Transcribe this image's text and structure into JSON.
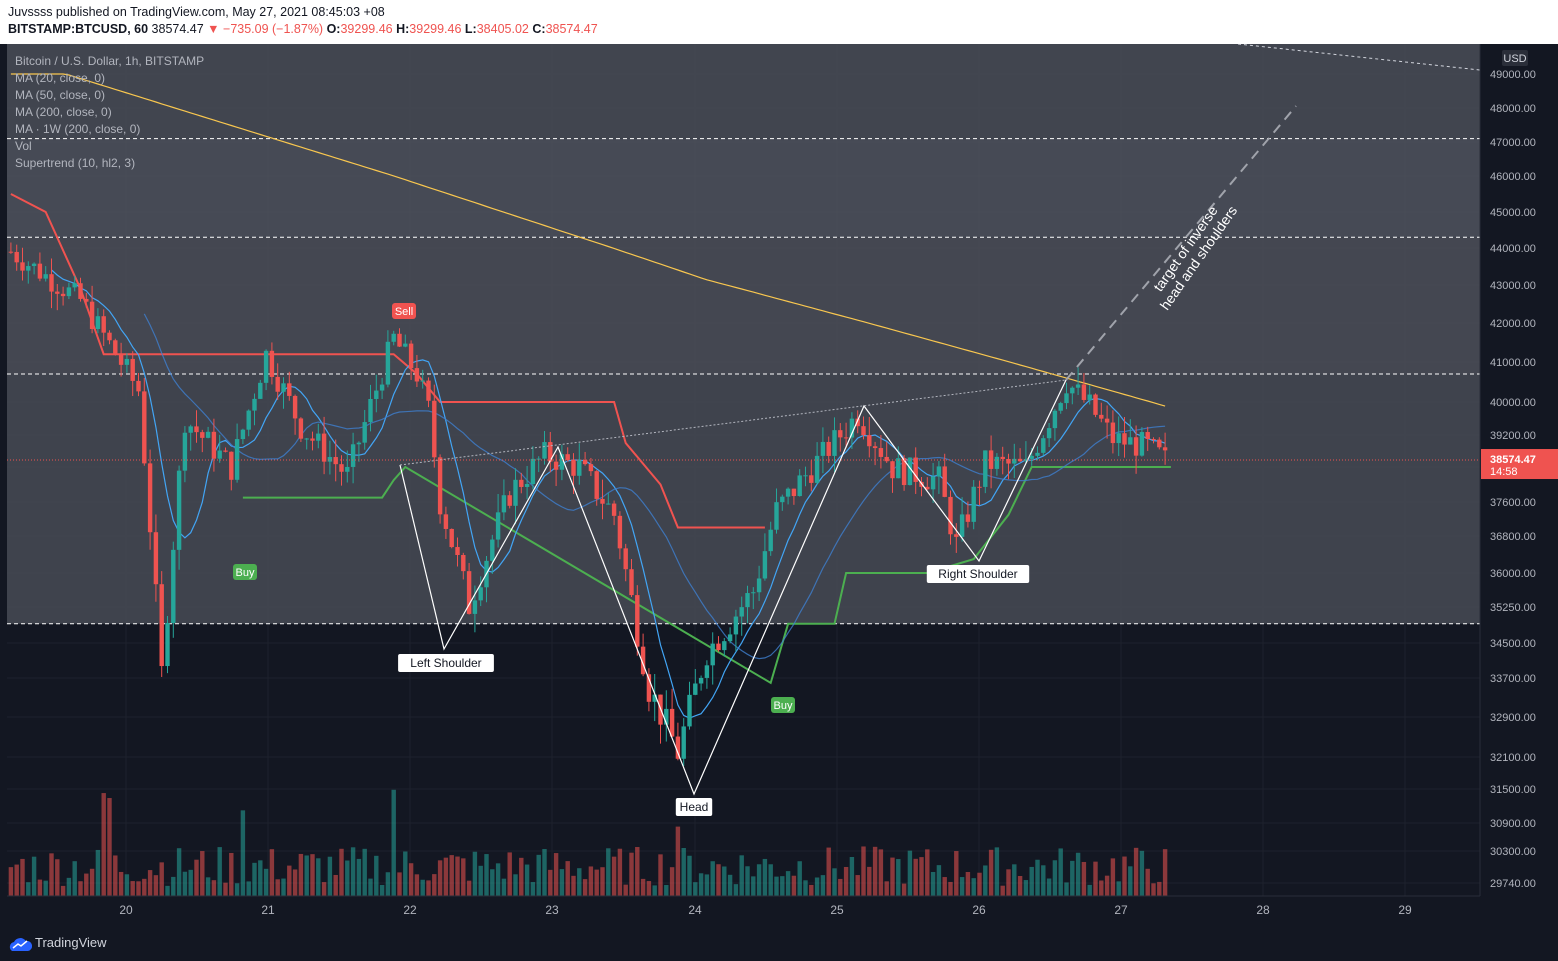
{
  "header": {
    "line1": "Juvssss published on TradingView.com, May 27, 2021 08:45:03 +08",
    "symbol": "BITSTAMP:BTCUSD, 60",
    "last": "38574.47",
    "change": "▼ −735.09 (−1.87%)",
    "o_label": "O:",
    "o": "39299.46",
    "h_label": "H:",
    "h": "39299.46",
    "l_label": "L:",
    "l": "38405.02",
    "c_label": "C:",
    "c": "38574.47"
  },
  "legend": [
    "Bitcoin / U.S. Dollar, 1h, BITSTAMP",
    "MA (20, close, 0)",
    "MA (50, close, 0)",
    "MA (200, close, 0)",
    "MA · 1W (200, close, 0)",
    "Vol",
    "Supertrend (10, hl2, 3)"
  ],
  "footer": {
    "brand": "TradingView"
  },
  "colors": {
    "up": "#26a69a",
    "down": "#ef5350",
    "ma20": "#42a5f5",
    "ma200": "#f9c74f",
    "supertrend_up": "#4caf50",
    "supertrend_down": "#f05350"
  },
  "chart_data": {
    "type": "candlestick",
    "currency": "USD",
    "y_ticks": [
      "49000.00",
      "48000.00",
      "47000.00",
      "46000.00",
      "45000.00",
      "44000.00",
      "43000.00",
      "42000.00",
      "41000.00",
      "40000.00",
      "39200.00",
      "38400.00",
      "37600.00",
      "36800.00",
      "36000.00",
      "35250.00",
      "34500.00",
      "33700.00",
      "32900.00",
      "32100.00",
      "31500.00",
      "30900.00",
      "30300.00",
      "29740.00"
    ],
    "x_ticks": [
      "20",
      "21",
      "22",
      "23",
      "24",
      "25",
      "26",
      "27",
      "28",
      "29"
    ],
    "price_label": "38574.47",
    "countdown": "14:58",
    "horizontal_levels": [
      47100,
      44300,
      40700,
      34900
    ],
    "pattern_labels": [
      "Left Shoulder",
      "Head",
      "Right Shoulder"
    ],
    "target_text_1": "target of inverse",
    "target_text_2": "head and shoulders",
    "signals": [
      {
        "text": "Buy",
        "type": "buy"
      },
      {
        "text": "Sell",
        "type": "sell"
      },
      {
        "text": "Buy",
        "type": "buy"
      }
    ]
  }
}
